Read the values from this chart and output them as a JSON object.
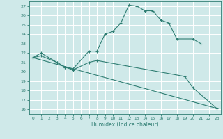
{
  "xlabel": "Humidex (Indice chaleur)",
  "xlim": [
    -0.5,
    23.5
  ],
  "ylim": [
    15.5,
    27.5
  ],
  "yticks": [
    16,
    17,
    18,
    19,
    20,
    21,
    22,
    23,
    24,
    25,
    26,
    27
  ],
  "xticks": [
    0,
    1,
    2,
    3,
    4,
    5,
    6,
    7,
    8,
    9,
    10,
    11,
    12,
    13,
    14,
    15,
    16,
    17,
    18,
    19,
    20,
    21,
    22,
    23
  ],
  "bg_color": "#cfe9e9",
  "grid_color": "#ffffff",
  "line_color": "#2e7d72",
  "line1_x": [
    0,
    1,
    3,
    4,
    5,
    7,
    8,
    9,
    10,
    11,
    12,
    13,
    14,
    15,
    16,
    17,
    18,
    20,
    21
  ],
  "line1_y": [
    21.5,
    22.0,
    21.0,
    20.5,
    20.3,
    22.2,
    22.2,
    24.0,
    24.3,
    25.2,
    27.1,
    27.0,
    26.5,
    26.5,
    25.5,
    25.2,
    23.5,
    23.5,
    23.0
  ],
  "line2_x": [
    0,
    1,
    3,
    4,
    5,
    7,
    8,
    19,
    20,
    23
  ],
  "line2_y": [
    21.5,
    21.7,
    21.0,
    20.5,
    20.2,
    21.0,
    21.2,
    19.5,
    18.3,
    16.1
  ],
  "line3_x": [
    0,
    23
  ],
  "line3_y": [
    21.5,
    16.1
  ],
  "figwidth": 3.2,
  "figheight": 2.0,
  "dpi": 100
}
